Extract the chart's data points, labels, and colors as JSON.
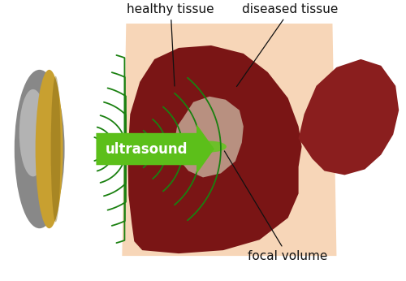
{
  "bg_color": "#ffffff",
  "scan_plane_color": "#f5c9a0",
  "scan_plane_alpha": 0.75,
  "liver_main_color": "#7a1515",
  "liver_right_lobe_color": "#8a1e1e",
  "diseased_area_color": "#b89080",
  "focal_volume_color": "#6dbf2a",
  "transducer_gray": "#b8b8b8",
  "transducer_gold": "#c8a030",
  "arrow_color": "#5cbf1a",
  "arrow_text_color": "#ffffff",
  "wave_color": "#1a8010",
  "label_fontsize": 11,
  "arrow_label_fontsize": 12,
  "labels": {
    "healthy_tissue": "healthy tissue",
    "diseased_tissue": "diseased tissue",
    "focal_volume": "focal volume",
    "ultrasound": "ultrasound"
  }
}
